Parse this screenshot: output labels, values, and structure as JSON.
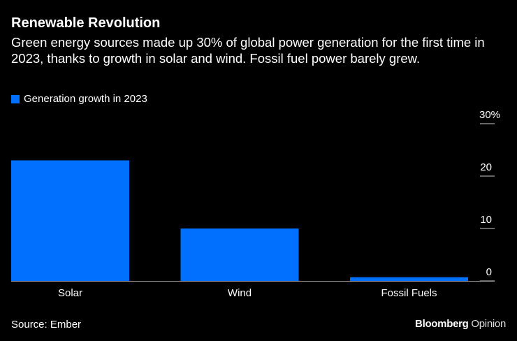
{
  "chart_data": {
    "type": "bar",
    "title": "Renewable Revolution",
    "subtitle": "Green energy sources made up 30% of global power generation for the first time in 2023, thanks to growth in solar and wind. Fossil fuel power barely grew.",
    "categories": [
      "Solar",
      "Wind",
      "Fossil Fuels"
    ],
    "series": [
      {
        "name": "Generation growth in 2023",
        "values": [
          23,
          10,
          0.7
        ],
        "color": "#0070ff"
      }
    ],
    "ylim": [
      0,
      30
    ],
    "yticks": [
      0,
      10,
      20,
      30
    ],
    "ytick_labels": [
      "0",
      "10",
      "20",
      "30%"
    ],
    "xlabel": "",
    "ylabel": "",
    "legend": "top-left",
    "grid": false
  },
  "source": "Source: Ember",
  "brand": {
    "name": "Bloomberg",
    "suffix": "Opinion"
  }
}
